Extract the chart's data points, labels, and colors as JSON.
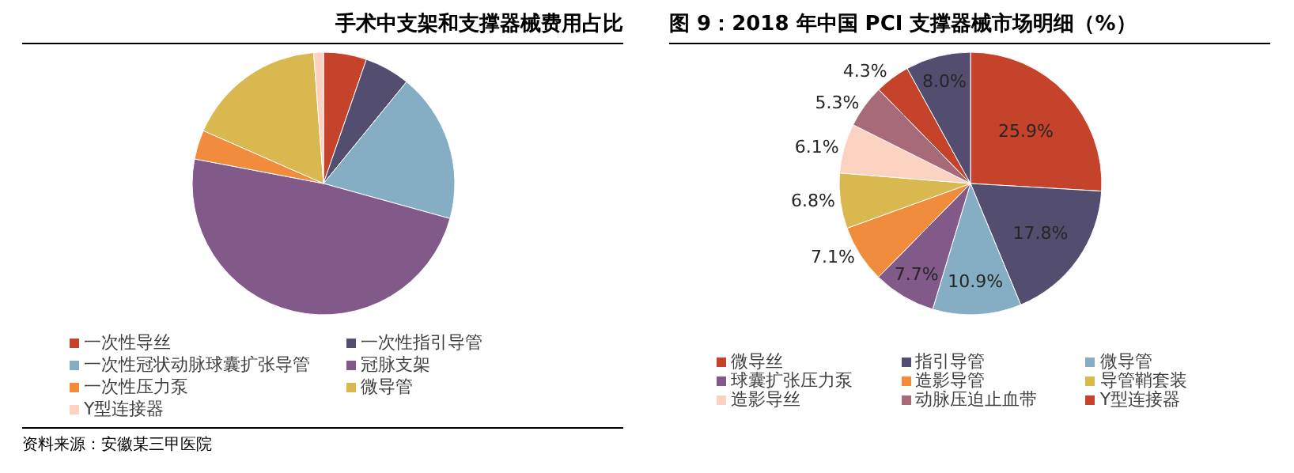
{
  "chart_data": [
    {
      "type": "pie",
      "title": "手术中支架和支撑器械费用占比",
      "categories": [
        "一次性导丝",
        "一次性指引导管",
        "一次性冠状动脉球囊扩张导管",
        "冠脉支架",
        "一次性压力泵",
        "微导管",
        "Y型连接器"
      ],
      "values": [
        5.3,
        5.6,
        18.4,
        48.7,
        3.6,
        17.2,
        1.2
      ],
      "colors": [
        "#c5432a",
        "#534d6f",
        "#85adc3",
        "#825a8a",
        "#f08c3c",
        "#d9b84f",
        "#fbd2c0"
      ],
      "legend": "bottom",
      "annotations": [
        "资料来源：安徽某三甲医院"
      ]
    },
    {
      "type": "pie",
      "title": "图 9：2018 年中国 PCI 支撑器械市场明细（%）",
      "categories": [
        "微导丝",
        "指引导管",
        "微导管",
        "球囊扩张压力泵",
        "造影导管",
        "导管鞘套装",
        "造影导丝",
        "动脉压迫止血带",
        "Y型连接器",
        null
      ],
      "values": [
        25.9,
        17.8,
        10.9,
        7.7,
        7.1,
        6.8,
        6.1,
        5.3,
        4.3,
        8.0
      ],
      "value_labels": [
        "25.9%",
        "17.8%",
        "10.9%",
        "7.7%",
        "7.1%",
        "6.8%",
        "6.1%",
        "5.3%",
        "4.3%",
        "8.0%"
      ],
      "colors": [
        "#c5432a",
        "#534d6f",
        "#85adc3",
        "#825a8a",
        "#f08c3c",
        "#d9b84f",
        "#fbd2c0",
        "#a76a78",
        "#c5432a",
        "#534d6f"
      ],
      "legend": "bottom"
    }
  ]
}
